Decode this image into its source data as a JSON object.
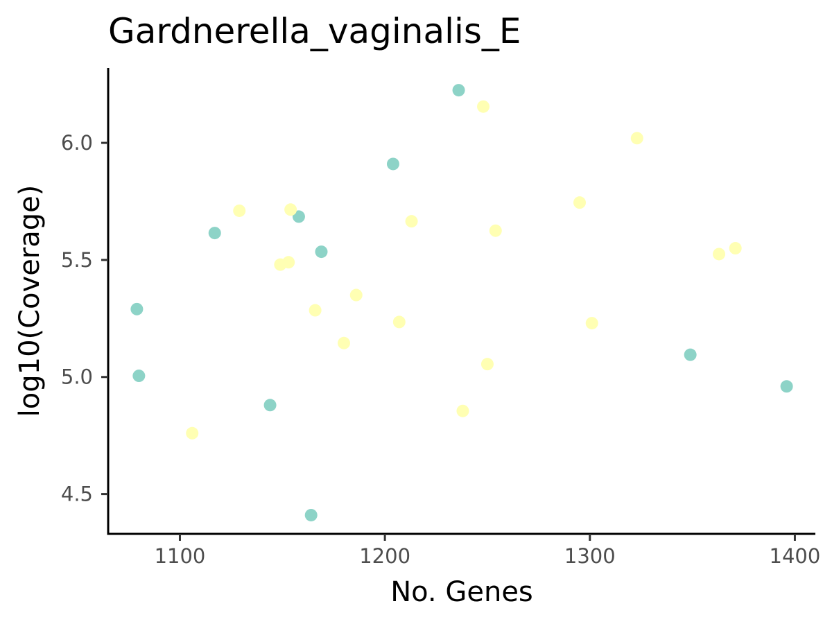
{
  "chart_data": {
    "type": "scatter",
    "title": "Gardnerella_vaginalis_E",
    "xlabel": "No. Genes",
    "ylabel": "log10(Coverage)",
    "xlim": [
      1065,
      1410
    ],
    "ylim": [
      4.33,
      6.32
    ],
    "x_ticks": [
      1100,
      1200,
      1300,
      1400
    ],
    "y_ticks": [
      4.5,
      5.0,
      5.5,
      6.0
    ],
    "x_tick_labels": [
      "1100",
      "1200",
      "1300",
      "1400"
    ],
    "y_tick_labels": [
      "4.5",
      "5.0",
      "5.5",
      "6.0"
    ],
    "grid": false,
    "legend": "none",
    "groups": [
      {
        "color": "#8dd3c7",
        "x": [
          1236,
          1204,
          1158,
          1117,
          1169,
          1079,
          1080,
          1144,
          1164,
          1349,
          1396
        ],
        "y": [
          6.225,
          5.91,
          5.685,
          5.615,
          5.535,
          5.29,
          5.005,
          4.88,
          4.41,
          5.095,
          4.96
        ]
      },
      {
        "color": "#ffffb3",
        "x": [
          1248,
          1323,
          1129,
          1154,
          1213,
          1254,
          1295,
          1153,
          1149,
          1186,
          1166,
          1207,
          1180,
          1301,
          1250,
          1363,
          1371,
          1238,
          1106
        ],
        "y": [
          6.155,
          6.02,
          5.71,
          5.715,
          5.665,
          5.625,
          5.745,
          5.49,
          5.48,
          5.35,
          5.285,
          5.235,
          5.145,
          5.23,
          5.055,
          5.525,
          5.55,
          4.855,
          4.76
        ]
      }
    ]
  }
}
